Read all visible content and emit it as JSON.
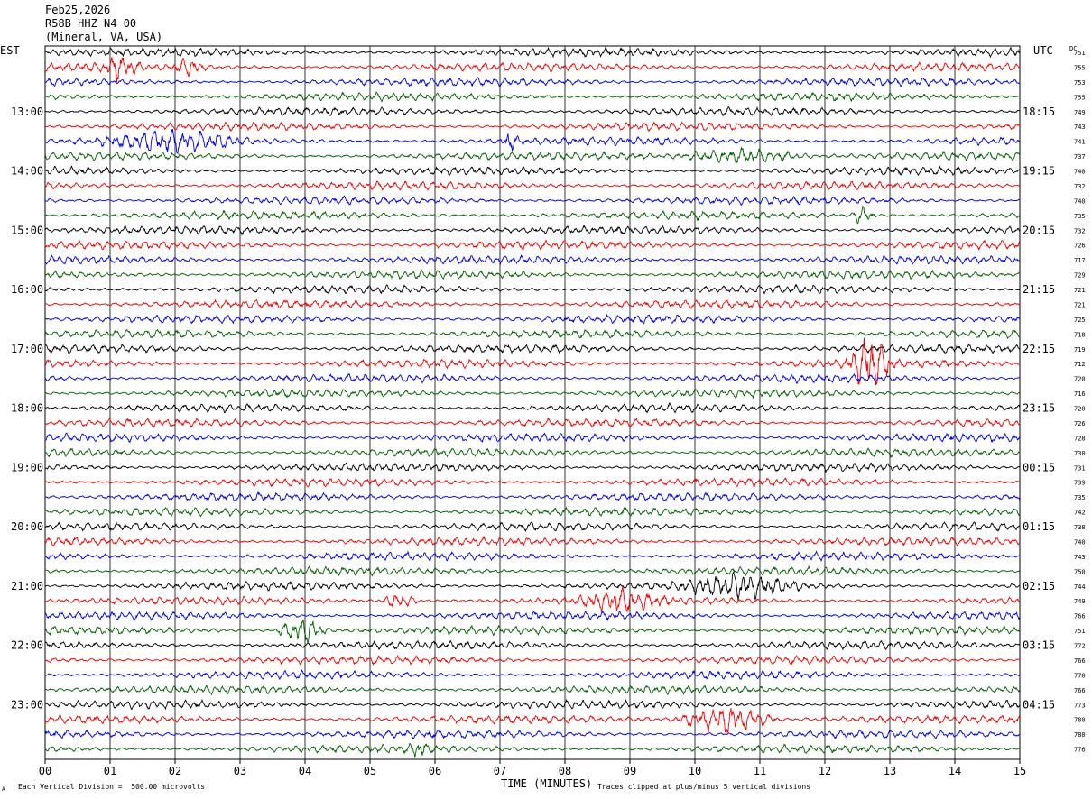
{
  "header": {
    "date": "Feb25,2026",
    "station": "R58B HHZ N4 00",
    "location": "(Mineral, VA, USA)"
  },
  "left_label": "EST",
  "right_label": "UTC",
  "dc_label": "DC",
  "footer": {
    "scale": "Each Vertical Division =  500.00 microvolts",
    "xlabel": "TIME (MINUTES)",
    "clip_note": "Traces clipped at plus/minus 5 vertical divisions",
    "corner_mark": "A"
  },
  "chart_data": {
    "type": "line",
    "title": "Feb25,2026 R58B HHZ N4 00 (Mineral, VA, USA)",
    "xlabel": "TIME (MINUTES)",
    "xlim": [
      0,
      15
    ],
    "x_ticks": [
      "00",
      "01",
      "02",
      "03",
      "04",
      "05",
      "06",
      "07",
      "08",
      "09",
      "10",
      "11",
      "12",
      "13",
      "14",
      "15"
    ],
    "rows_per_hour": 4,
    "trace_colors": [
      "#000000",
      "#ff0000",
      "#0000ff",
      "#006400"
    ],
    "est_hour_labels": [
      "",
      "13:00",
      "14:00",
      "15:00",
      "16:00",
      "17:00",
      "18:00",
      "19:00",
      "20:00",
      "21:00",
      "22:00",
      "23:00"
    ],
    "utc_hour_labels": [
      "",
      "18:15",
      "19:15",
      "20:15",
      "21:15",
      "22:15",
      "23:15",
      "00:15",
      "01:15",
      "02:15",
      "03:15",
      "04:15"
    ],
    "dc_offsets": [
      751,
      755,
      753,
      755,
      749,
      743,
      741,
      737,
      740,
      732,
      740,
      735,
      732,
      726,
      717,
      729,
      721,
      721,
      725,
      718,
      719,
      712,
      720,
      716,
      720,
      726,
      728,
      730,
      731,
      739,
      735,
      742,
      738,
      740,
      743,
      750,
      744,
      749,
      766,
      751,
      772,
      766,
      770,
      766,
      773,
      780,
      780,
      776
    ],
    "events": [
      {
        "row": 1,
        "start_min": 0.8,
        "end_min": 1.5,
        "amp": 1.8
      },
      {
        "row": 1,
        "start_min": 1.9,
        "end_min": 2.5,
        "amp": 1.4
      },
      {
        "row": 6,
        "start_min": 0.7,
        "end_min": 3.2,
        "amp": 1.5
      },
      {
        "row": 6,
        "start_min": 7.0,
        "end_min": 7.3,
        "amp": 1.6
      },
      {
        "row": 7,
        "start_min": 9.6,
        "end_min": 11.9,
        "amp": 1.3
      },
      {
        "row": 11,
        "start_min": 12.4,
        "end_min": 12.8,
        "amp": 1.8
      },
      {
        "row": 21,
        "start_min": 12.3,
        "end_min": 13.1,
        "amp": 5.0
      },
      {
        "row": 36,
        "start_min": 9.6,
        "end_min": 11.8,
        "amp": 1.8
      },
      {
        "row": 37,
        "start_min": 8.1,
        "end_min": 9.6,
        "amp": 1.8
      },
      {
        "row": 37,
        "start_min": 5.1,
        "end_min": 5.8,
        "amp": 1.3
      },
      {
        "row": 39,
        "start_min": 3.5,
        "end_min": 4.4,
        "amp": 2.4
      },
      {
        "row": 45,
        "start_min": 9.6,
        "end_min": 11.4,
        "amp": 2.6
      },
      {
        "row": 47,
        "start_min": 5.6,
        "end_min": 5.9,
        "amp": 1.6
      }
    ]
  }
}
